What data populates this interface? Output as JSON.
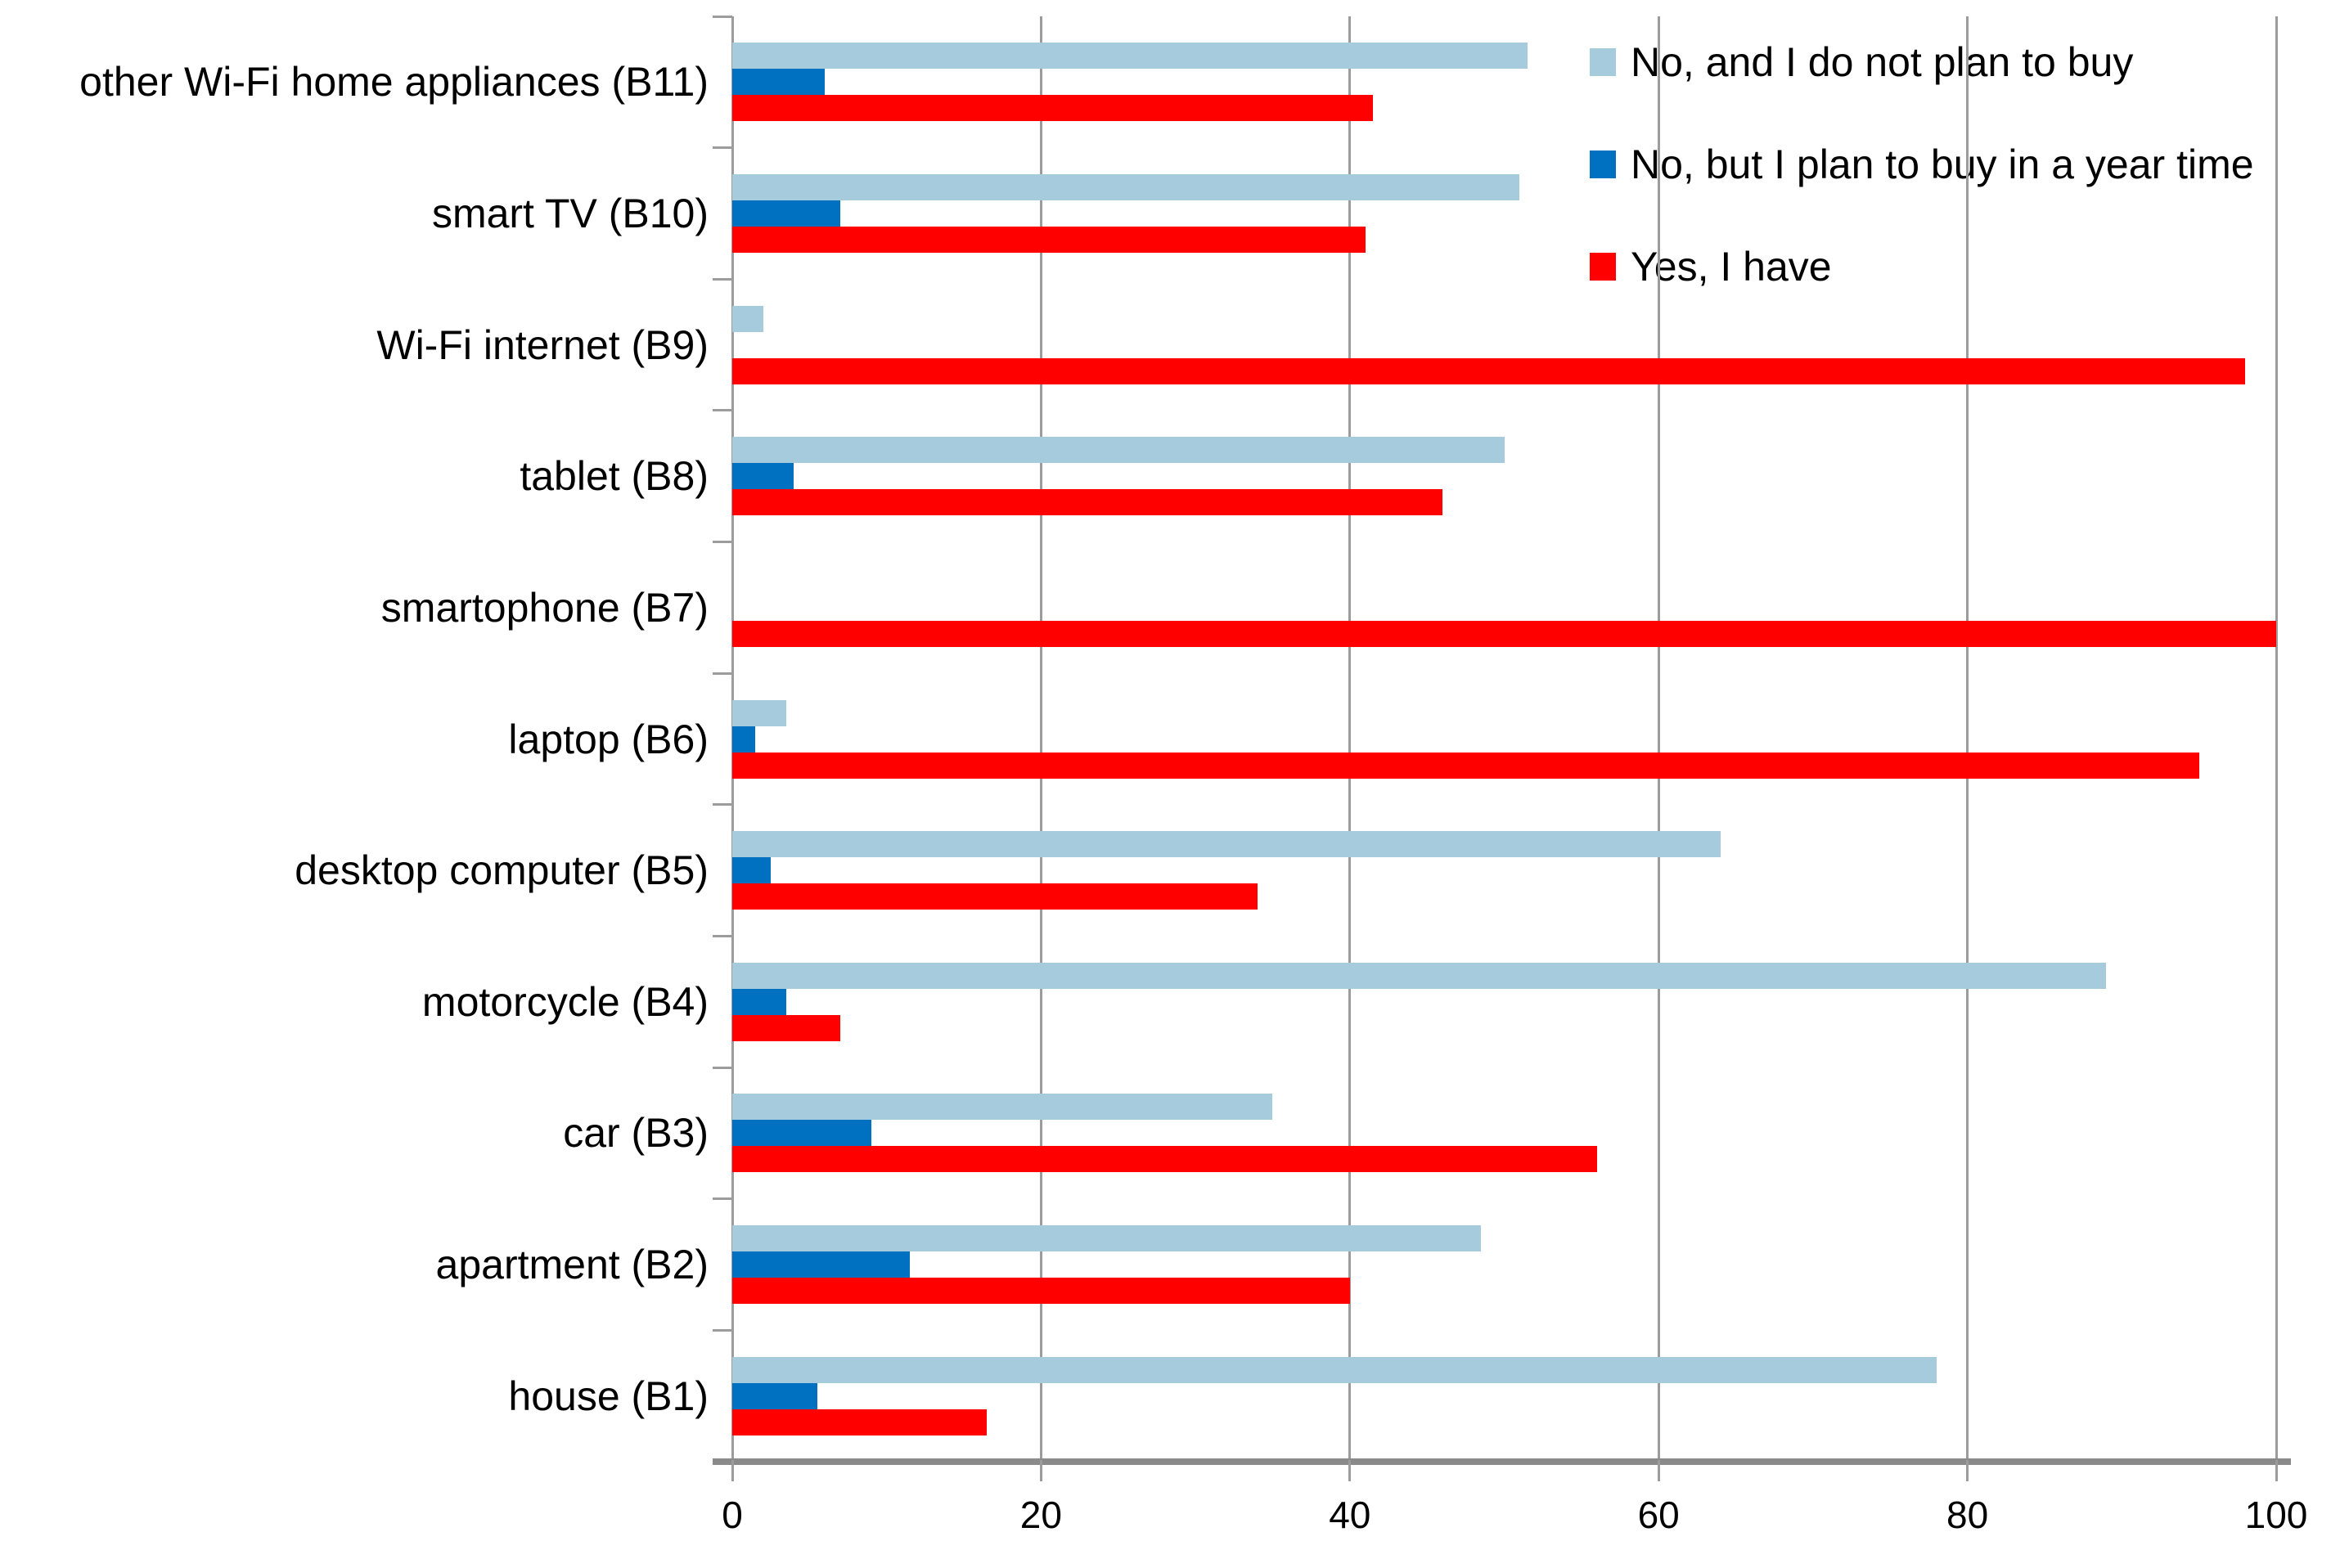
{
  "chart_data": {
    "type": "bar",
    "orientation": "horizontal",
    "title": "",
    "xlabel": "",
    "ylabel": "",
    "categories_top_to_bottom": [
      "other Wi-Fi home appliances (B11)",
      "smart TV (B10)",
      "Wi-Fi internet (B9)",
      "tablet (B8)",
      "smartophone (B7)",
      "laptop (B6)",
      "desktop computer (B5)",
      "motorcycle (B4)",
      "car (B3)",
      "apartment (B2)",
      "house (B1)"
    ],
    "series": [
      {
        "name": "No, and I do not plan to buy",
        "color": "#a5cbdc",
        "values": [
          51.5,
          51,
          2,
          50,
          0,
          3.5,
          64,
          89,
          35,
          48.5,
          78
        ]
      },
      {
        "name": "No, but I plan to buy in a year time",
        "color": "#0070c0",
        "values": [
          6,
          7,
          0,
          4,
          0,
          1.5,
          2.5,
          3.5,
          9,
          11.5,
          5.5
        ]
      },
      {
        "name": "Yes, I have",
        "color": "#ff0000",
        "values": [
          41.5,
          41,
          98,
          46,
          100,
          95,
          34,
          7,
          56,
          40,
          16.5
        ]
      }
    ],
    "x_axis": {
      "ticks": [
        0,
        20,
        40,
        60,
        80,
        100
      ],
      "range": [
        0,
        100
      ],
      "gridlines": true
    },
    "legend": {
      "position": "top-right",
      "entries": [
        "No, and I do not plan to buy",
        "No, but I plan to buy in a year time",
        "Yes, I have"
      ]
    },
    "colors": {
      "gridline": "#9c9c9c",
      "axis_line": "#8a8a8a",
      "text": "#000000",
      "background": "#ffffff"
    }
  }
}
